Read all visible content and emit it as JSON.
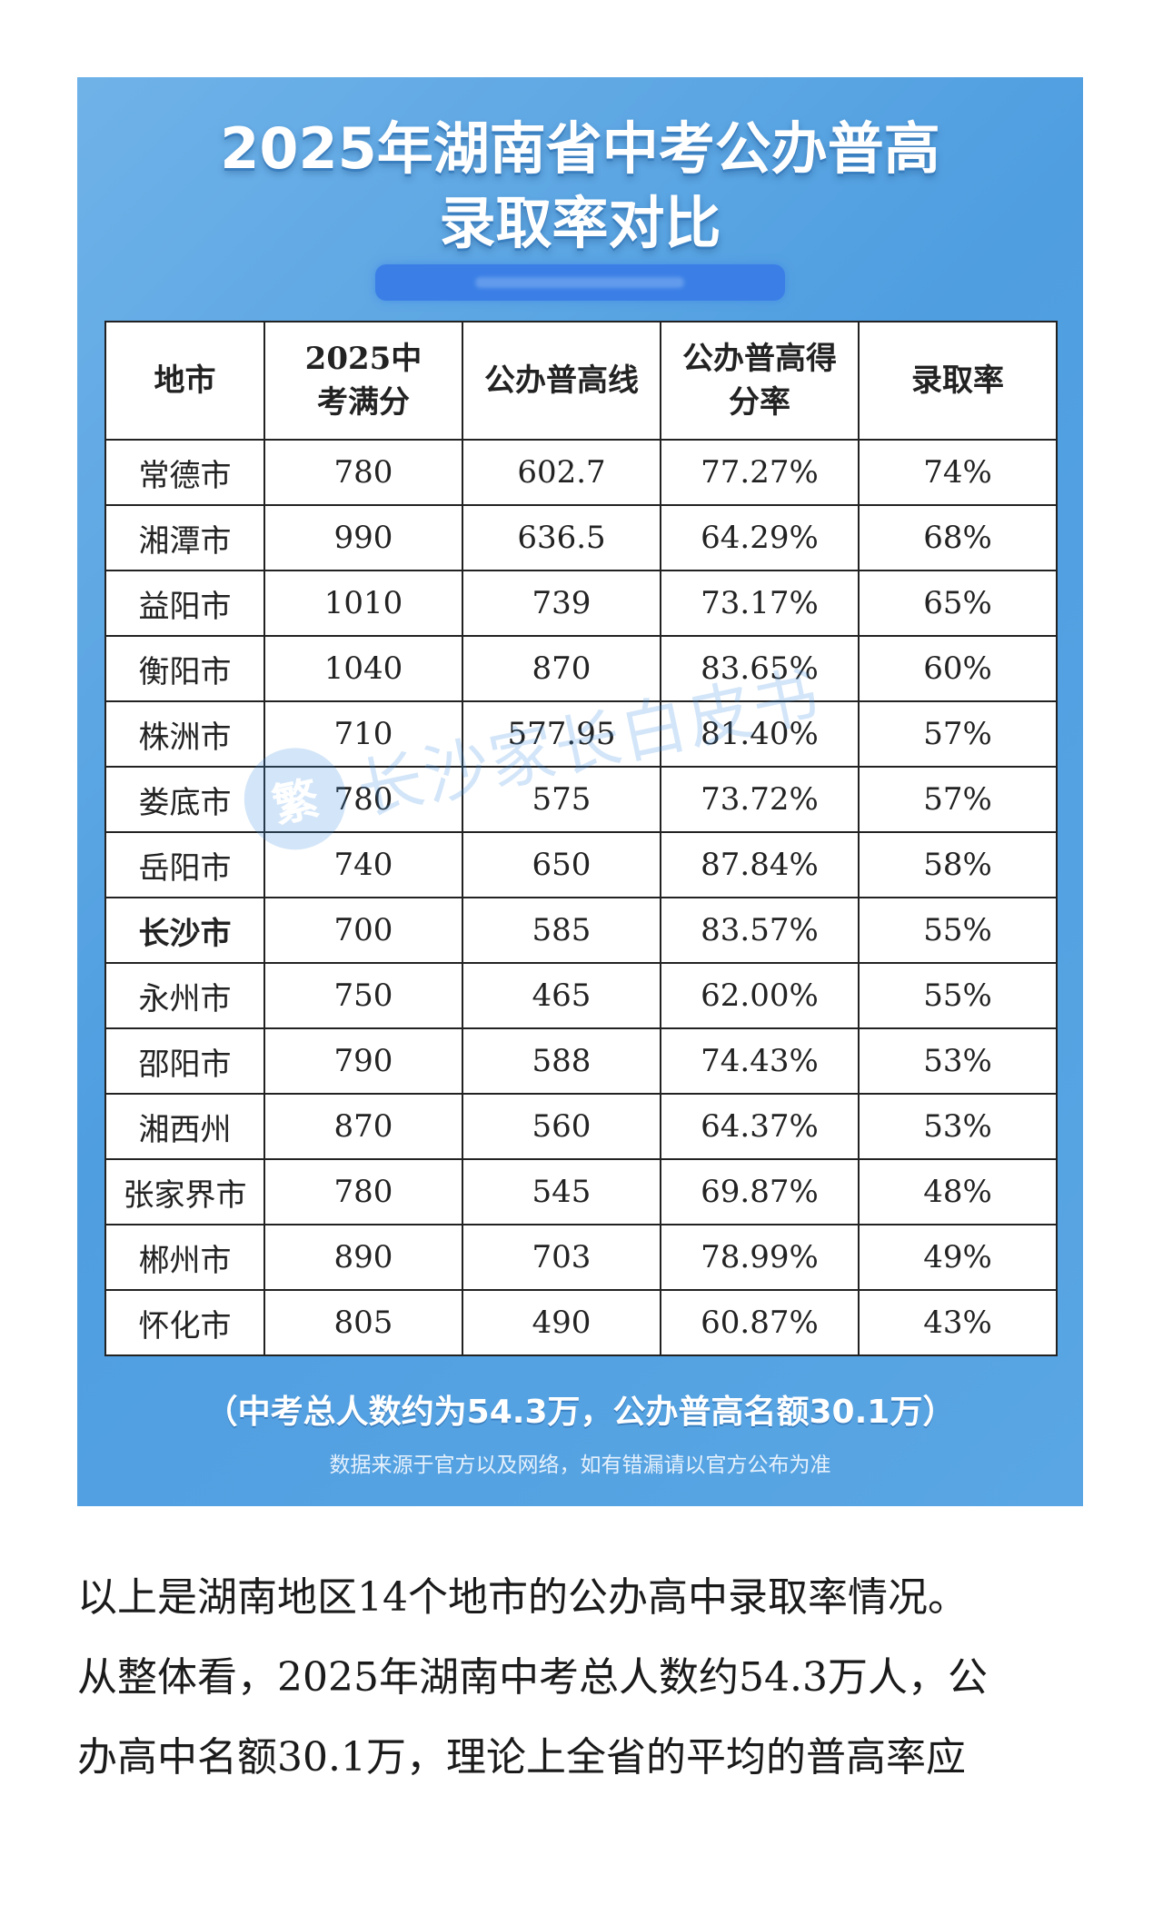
{
  "poster": {
    "title_line1": "2025年湖南省中考公办普高",
    "title_line2": "录取率对比",
    "headers": [
      "地市",
      "2025中考满分",
      "公办普高线",
      "公办普高得分率",
      "录取率"
    ],
    "rows": [
      {
        "city": "常德市",
        "full": "780",
        "line": "602.7",
        "score_rate": "77.27%",
        "admit": "74%"
      },
      {
        "city": "湘潭市",
        "full": "990",
        "line": "636.5",
        "score_rate": "64.29%",
        "admit": "68%"
      },
      {
        "city": "益阳市",
        "full": "1010",
        "line": "739",
        "score_rate": "73.17%",
        "admit": "65%"
      },
      {
        "city": "衡阳市",
        "full": "1040",
        "line": "870",
        "score_rate": "83.65%",
        "admit": "60%"
      },
      {
        "city": "株洲市",
        "full": "710",
        "line": "577.95",
        "score_rate": "81.40%",
        "admit": "57%"
      },
      {
        "city": "娄底市",
        "full": "780",
        "line": "575",
        "score_rate": "73.72%",
        "admit": "57%"
      },
      {
        "city": "岳阳市",
        "full": "740",
        "line": "650",
        "score_rate": "87.84%",
        "admit": "58%"
      },
      {
        "city": "长沙市",
        "full": "700",
        "line": "585",
        "score_rate": "83.57%",
        "admit": "55%",
        "bold": true
      },
      {
        "city": "永州市",
        "full": "750",
        "line": "465",
        "score_rate": "62.00%",
        "admit": "55%"
      },
      {
        "city": "邵阳市",
        "full": "790",
        "line": "588",
        "score_rate": "74.43%",
        "admit": "53%"
      },
      {
        "city": "湘西州",
        "full": "870",
        "line": "560",
        "score_rate": "64.37%",
        "admit": "53%"
      },
      {
        "city": "张家界市",
        "full": "780",
        "line": "545",
        "score_rate": "69.87%",
        "admit": "48%"
      },
      {
        "city": "郴州市",
        "full": "890",
        "line": "703",
        "score_rate": "78.99%",
        "admit": "49%"
      },
      {
        "city": "怀化市",
        "full": "805",
        "line": "490",
        "score_rate": "60.87%",
        "admit": "43%"
      }
    ],
    "watermark_badge": "繁",
    "watermark_text": "长沙家长白皮书",
    "footnote_main": "（中考总人数约为54.3万，公办普高名额30.1万）",
    "footnote_small": "数据来源于官方以及网络，如有错漏请以官方公布为准",
    "colors": {
      "background": "#5aa6e4",
      "subtitle_bar": "#3b7fe6",
      "table_border": "#222222"
    }
  },
  "article": {
    "line1": "以上是湖南地区14个地市的公办高中录取率情况。",
    "line2": "从整体看，2025年湖南中考总人数约54.3万人，公",
    "line3": "办高中名额30.1万，理论上全省的平均的普高率应"
  }
}
